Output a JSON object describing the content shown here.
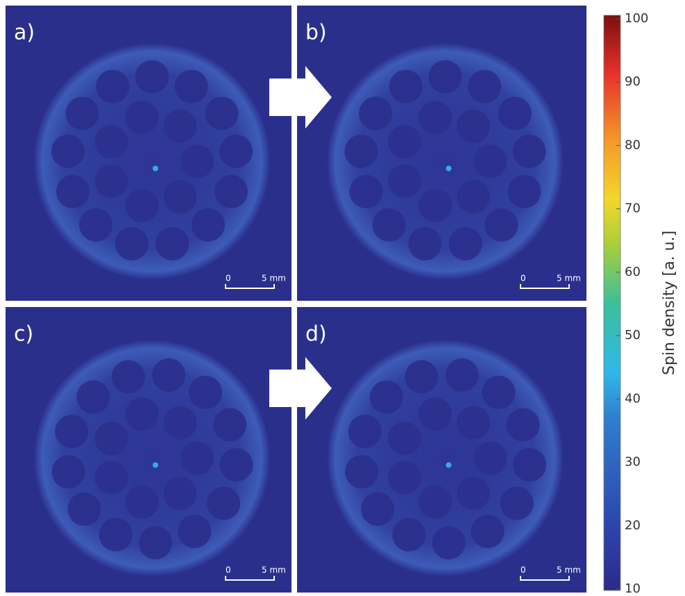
{
  "panels": [
    {
      "label": "a)",
      "scale_bar": {
        "start": "0",
        "end": "5 mm"
      }
    },
    {
      "label": "b)",
      "scale_bar": {
        "start": "0",
        "end": "5 mm"
      }
    },
    {
      "label": "c)",
      "scale_bar": {
        "start": "0",
        "end": "5 mm"
      }
    },
    {
      "label": "d)",
      "scale_bar": {
        "start": "0",
        "end": "5 mm"
      }
    }
  ],
  "colorbar": {
    "label": "Spin density [a. u.]",
    "lim": [
      10,
      100
    ],
    "ticks": [
      10,
      20,
      30,
      40,
      50,
      60,
      70,
      80,
      90,
      100
    ]
  }
}
